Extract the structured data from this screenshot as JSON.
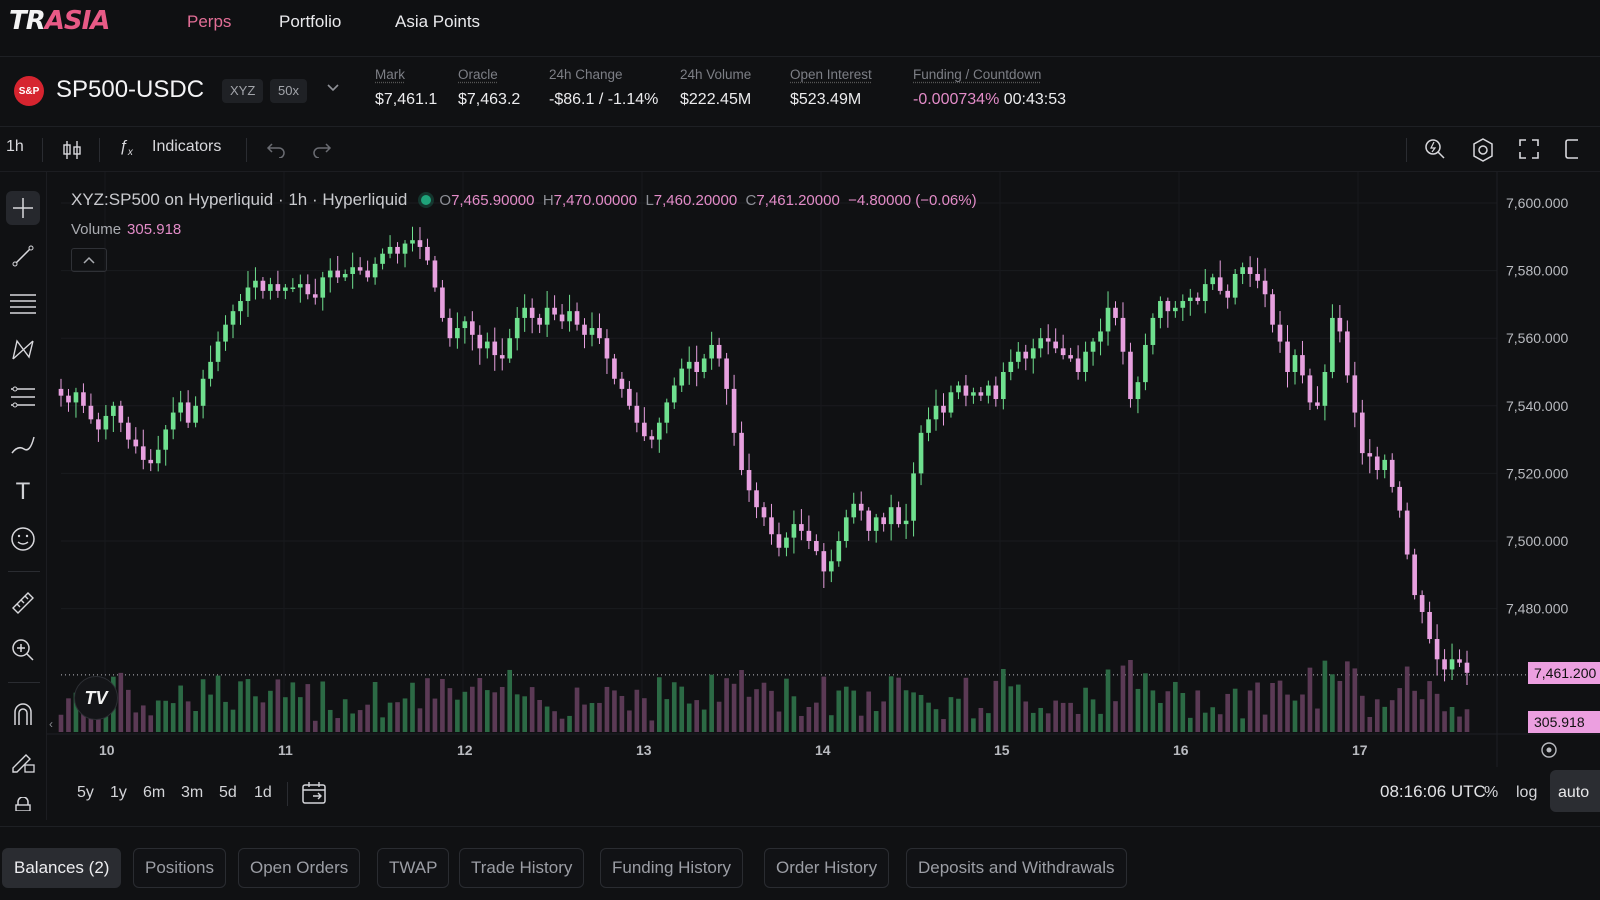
{
  "nav": {
    "logo_part1": "TR",
    "logo_part2": "ASIA",
    "links": [
      "Perps",
      "Portfolio",
      "Asia Points"
    ]
  },
  "market": {
    "icon_text": "S&P",
    "symbol": "SP500-USDC",
    "dex_tag": "XYZ",
    "leverage": "50x",
    "stats": [
      {
        "label": "Mark",
        "value": "$7,461.1"
      },
      {
        "label": "Oracle",
        "value": "$7,463.2"
      },
      {
        "label": "24h Change",
        "value": "-$86.1 / -1.14%"
      },
      {
        "label": "24h Volume",
        "value": "$222.45M"
      },
      {
        "label": "Open Interest",
        "value": "$523.49M"
      },
      {
        "label": "Funding / Countdown",
        "value": "-0.000734%",
        "countdown": "00:43:53"
      }
    ]
  },
  "toolbar": {
    "interval": "1h",
    "indicators_label": "Indicators"
  },
  "legend": {
    "title": "XYZ:SP500 on Hyperliquid · 1h · Hyperliquid",
    "o_label": "O",
    "o": "7,465.90000",
    "h_label": "H",
    "h": "7,470.00000",
    "l_label": "L",
    "l": "7,460.20000",
    "c_label": "C",
    "c": "7,461.20000",
    "change": "−4.80000 (−0.06%)",
    "volume_label": "Volume",
    "volume_value": "305.918"
  },
  "chart_data": {
    "type": "candlestick",
    "interval": "1h",
    "y_ticks": [
      "7,600.000",
      "7,580.000",
      "7,560.000",
      "7,540.000",
      "7,520.000",
      "7,500.000",
      "7,480.000"
    ],
    "ylim": [
      7460,
      7600
    ],
    "x_ticks": [
      "10",
      "11",
      "12",
      "13",
      "14",
      "15",
      "16",
      "17"
    ],
    "last_price_label": "7,461.200",
    "last_volume_label": "305.918",
    "colors": {
      "up": "#6fe08f",
      "down": "#e7a0df",
      "up_vol": "#2c6a45",
      "down_vol": "#5b3a55"
    },
    "closes": [
      7543,
      7541,
      7544,
      7540,
      7536,
      7533,
      7537,
      7540,
      7535,
      7530,
      7528,
      7524,
      7523,
      7527,
      7533,
      7538,
      7541,
      7535,
      7540,
      7548,
      7553,
      7559,
      7564,
      7568,
      7571,
      7575,
      7577,
      7574,
      7576,
      7574,
      7575,
      7575,
      7576,
      7573,
      7572,
      7578,
      7580,
      7578,
      7579,
      7581,
      7580,
      7578,
      7582,
      7585,
      7587,
      7585,
      7588,
      7589,
      7587,
      7583,
      7575,
      7566,
      7560,
      7563,
      7565,
      7561,
      7557,
      7559,
      7555,
      7554,
      7560,
      7566,
      7569,
      7566,
      7564,
      7569,
      7567,
      7565,
      7568,
      7564,
      7561,
      7563,
      7560,
      7554,
      7548,
      7545,
      7540,
      7535,
      7531,
      7530,
      7535,
      7541,
      7546,
      7551,
      7553,
      7550,
      7554,
      7558,
      7554,
      7545,
      7532,
      7521,
      7515,
      7510,
      7507,
      7502,
      7498,
      7501,
      7505,
      7503,
      7500,
      7497,
      7491,
      7494,
      7500,
      7507,
      7511,
      7509,
      7503,
      7507,
      7505,
      7510,
      7505,
      7506,
      7520,
      7532,
      7536,
      7540,
      7538,
      7544,
      7546,
      7543,
      7544,
      7543,
      7546,
      7542,
      7550,
      7553,
      7556,
      7554,
      7557,
      7560,
      7559,
      7557,
      7555,
      7554,
      7550,
      7556,
      7559,
      7562,
      7569,
      7566,
      7556,
      7542,
      7547,
      7558,
      7566,
      7571,
      7568,
      7569,
      7571,
      7572,
      7571,
      7576,
      7578,
      7574,
      7572,
      7579,
      7581,
      7579,
      7577,
      7573,
      7564,
      7559,
      7550,
      7555,
      7549,
      7541,
      7540,
      7550,
      7566,
      7562,
      7549,
      7538,
      7526,
      7525,
      7521,
      7524,
      7516,
      7509,
      7496,
      7484,
      7479,
      7471,
      7465,
      7462,
      7465,
      7464,
      7461
    ]
  },
  "range_buttons": [
    "5y",
    "1y",
    "6m",
    "3m",
    "5d",
    "1d"
  ],
  "clock": "08:16:06 UTC",
  "scale_buttons": [
    "%",
    "log",
    "auto"
  ],
  "tabs": [
    "Balances (2)",
    "Positions",
    "Open Orders",
    "TWAP",
    "Trade History",
    "Funding History",
    "Order History",
    "Deposits and Withdrawals"
  ]
}
